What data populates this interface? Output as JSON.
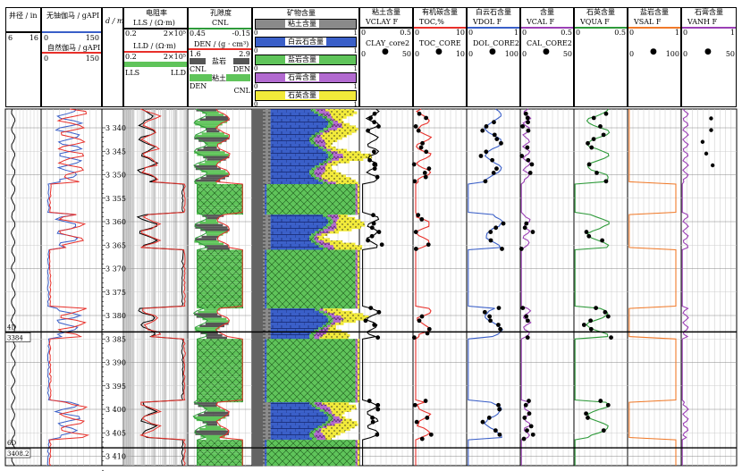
{
  "header": {
    "caliper": {
      "title": "井径 / in",
      "min": "6",
      "max": "16"
    },
    "gr": {
      "title1": "无铀伽马 / gAPI",
      "t1_min": "0",
      "t1_max": "150",
      "title2": "自然伽马 / gAPI",
      "t2_min": "0",
      "t2_max": "150"
    },
    "depth": {
      "title": "d / m"
    },
    "res": {
      "title": "电阻率",
      "lls": "LLS / (Ω·m)",
      "lls_min": "0.2",
      "lls_max": "2×10⁵",
      "lld": "LLD / (Ω·m)",
      "lld_min": "0.2",
      "lld_max": "2×10⁵",
      "fill_left": "LLS",
      "fill_right": "LLD"
    },
    "por": {
      "title": "孔隙度",
      "cnl": "CNL",
      "cnl_min": "0.45",
      "cnl_max": "-0.15",
      "den": "DEN / (g · cm³)",
      "den_min": "1.6",
      "den_max": "2.9",
      "salt_left": "CNL",
      "salt_label": "盐岩",
      "salt_right": "DEN",
      "clay_left": "DEN",
      "clay_label": "粘土",
      "clay_right": "CNL"
    },
    "mineral": {
      "title": "矿物含量",
      "items": [
        {
          "label": "粘土含量",
          "min": "0",
          "max": "1"
        },
        {
          "label": "白云石含量",
          "min": "0",
          "max": "1"
        },
        {
          "label": "盐岩含量",
          "min": "0",
          "max": "1"
        },
        {
          "label": "石膏含量",
          "min": "0",
          "max": "1"
        },
        {
          "label": "石英含量",
          "min": "0",
          "max": "1"
        }
      ]
    },
    "curves": [
      {
        "title": "粘土含量",
        "curve": "VCLAY F",
        "min": "0",
        "max": "0.5",
        "core": "CLAY_core2",
        "cmin": "0",
        "cmax": "50",
        "color": "#000000"
      },
      {
        "title": "有机碳含量",
        "curve": "TOC,%",
        "min": "0",
        "max": "10",
        "core": "TOC_CORE",
        "cmin": "0",
        "cmax": "10",
        "color": "#e8302a"
      },
      {
        "title": "白云石含量",
        "curve": "VDOL F",
        "min": "0",
        "max": "1",
        "core": "DOL_CORE2",
        "cmin": "0",
        "cmax": "100",
        "color": "#3a5fc8"
      },
      {
        "title": "含量",
        "curve": "VCAL F",
        "min": "0",
        "max": "0.5",
        "core": "CAL_CORE2",
        "cmin": "0",
        "cmax": "50",
        "color": "#9b3fb5"
      },
      {
        "title": "石英含量",
        "curve": "VQUA F",
        "min": "0",
        "max": "0.5",
        "core": "",
        "cmin": "",
        "cmax": "",
        "color": "#2e9a3a"
      },
      {
        "title": "盐岩含量",
        "curve": "VSAL F",
        "min": "0",
        "max": "1",
        "core": "",
        "cmin": "0",
        "cmax": "100",
        "color": "#f07a2a"
      },
      {
        "title": "石膏含量",
        "curve": "VANH F",
        "min": "0",
        "max": "1",
        "core": "",
        "cmin": "0",
        "cmax": "50",
        "color": "#9b3fb5"
      }
    ]
  },
  "depth_ticks": [
    "3 340",
    "3 345",
    "3 350",
    "3 355",
    "3 360",
    "3 365",
    "3 370",
    "3 375",
    "3 380",
    "3 385",
    "3 390",
    "3 395",
    "3 400",
    "3 405",
    "3 410"
  ],
  "markers": [
    {
      "tag": "4D",
      "value": "3384"
    },
    {
      "tag": "6D",
      "value": "3408.2"
    }
  ],
  "colors": {
    "clay": "#8a8a8a",
    "dolomite": "#3a5fc8",
    "salt": "#5fc45a",
    "gypsum": "#b26ad0",
    "quartz": "#f2ea3a"
  }
}
